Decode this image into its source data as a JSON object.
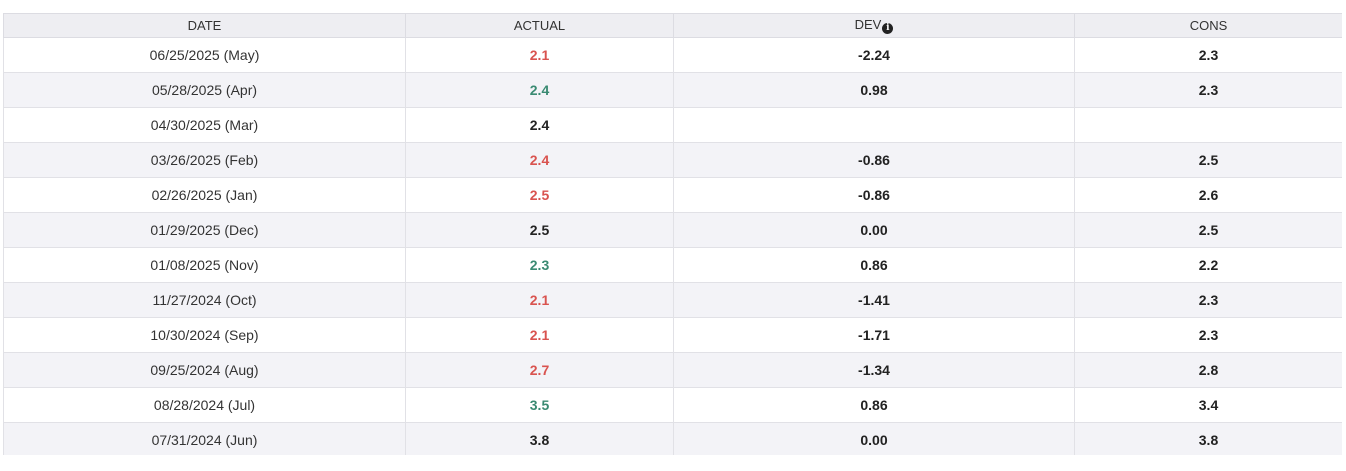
{
  "table": {
    "headers": {
      "date": "DATE",
      "actual": "ACTUAL",
      "dev": "DEV",
      "cons": "CONS"
    },
    "dev_info_icon": "info-icon",
    "colors": {
      "negative": "#d9534f",
      "positive": "#3a8a72",
      "neutral": "#222222"
    },
    "rows": [
      {
        "date": "06/25/2025 (May)",
        "actual": "2.1",
        "trend": "neg",
        "dev": "-2.24",
        "cons": "2.3"
      },
      {
        "date": "05/28/2025 (Apr)",
        "actual": "2.4",
        "trend": "pos",
        "dev": "0.98",
        "cons": "2.3"
      },
      {
        "date": "04/30/2025 (Mar)",
        "actual": "2.4",
        "trend": "neutral",
        "dev": "",
        "cons": ""
      },
      {
        "date": "03/26/2025 (Feb)",
        "actual": "2.4",
        "trend": "neg",
        "dev": "-0.86",
        "cons": "2.5"
      },
      {
        "date": "02/26/2025 (Jan)",
        "actual": "2.5",
        "trend": "neg",
        "dev": "-0.86",
        "cons": "2.6"
      },
      {
        "date": "01/29/2025 (Dec)",
        "actual": "2.5",
        "trend": "neutral",
        "dev": "0.00",
        "cons": "2.5"
      },
      {
        "date": "01/08/2025 (Nov)",
        "actual": "2.3",
        "trend": "pos",
        "dev": "0.86",
        "cons": "2.2"
      },
      {
        "date": "11/27/2024 (Oct)",
        "actual": "2.1",
        "trend": "neg",
        "dev": "-1.41",
        "cons": "2.3"
      },
      {
        "date": "10/30/2024 (Sep)",
        "actual": "2.1",
        "trend": "neg",
        "dev": "-1.71",
        "cons": "2.3"
      },
      {
        "date": "09/25/2024 (Aug)",
        "actual": "2.7",
        "trend": "neg",
        "dev": "-1.34",
        "cons": "2.8"
      },
      {
        "date": "08/28/2024 (Jul)",
        "actual": "3.5",
        "trend": "pos",
        "dev": "0.86",
        "cons": "3.4"
      },
      {
        "date": "07/31/2024 (Jun)",
        "actual": "3.8",
        "trend": "neutral",
        "dev": "0.00",
        "cons": "3.8"
      }
    ]
  }
}
